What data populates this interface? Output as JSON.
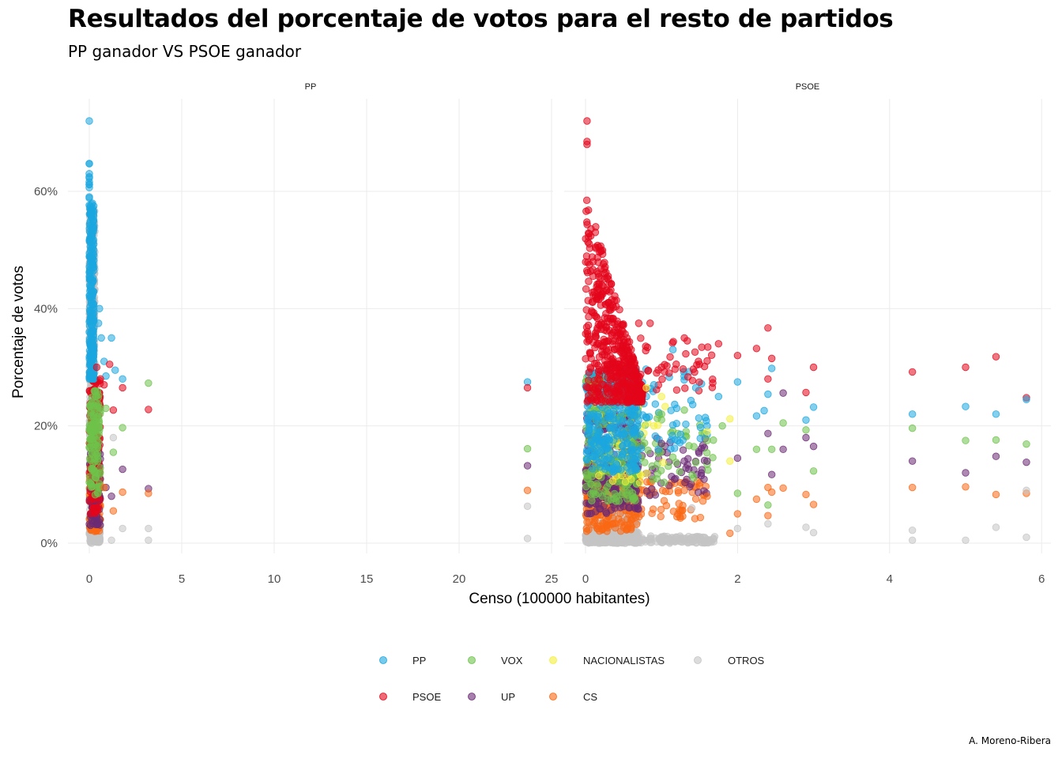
{
  "title": "Resultados del porcentaje de votos para el resto de partidos",
  "subtitle": "PP ganador VS PSOE ganador",
  "caption": "A. Moreno-Ribera",
  "chart_data": {
    "type": "scatter",
    "xlabel": "Censo (100000 habitantes)",
    "ylabel": "Porcentaje de votos",
    "ylim": [
      0,
      0.75
    ],
    "yticks": [
      0,
      0.2,
      0.4,
      0.6
    ],
    "ytick_labels": [
      "0%",
      "20%",
      "40%",
      "60%"
    ],
    "grid": true,
    "legend_position": "bottom",
    "legend": [
      {
        "name": "PP",
        "color": "#1BA7E0"
      },
      {
        "name": "VOX",
        "color": "#6EC34B"
      },
      {
        "name": "NACIONALISTAS",
        "color": "#F4F03A"
      },
      {
        "name": "OTROS",
        "color": "#C4C4C4"
      },
      {
        "name": "PSOE",
        "color": "#E3061B"
      },
      {
        "name": "UP",
        "color": "#6B2A74"
      },
      {
        "name": "CS",
        "color": "#FA6814"
      }
    ],
    "panels": [
      {
        "label": "PP",
        "xlim": [
          -1.2,
          25
        ],
        "xticks": [
          0,
          5,
          10,
          15,
          20,
          25
        ],
        "points": {
          "PP": [
            [
              0.55,
              0.4
            ],
            [
              0.65,
              0.35
            ],
            [
              0.8,
              0.31
            ],
            [
              1.2,
              0.35
            ],
            [
              1.4,
              0.295
            ],
            [
              1.8,
              0.28
            ],
            [
              0.5,
              0.375
            ],
            [
              0.3,
              0.3
            ],
            [
              0.9,
              0.285
            ],
            [
              23.7,
              0.275
            ]
          ],
          "PSOE": [
            [
              0.6,
              0.28
            ],
            [
              0.8,
              0.27
            ],
            [
              1.1,
              0.305
            ],
            [
              1.8,
              0.265
            ],
            [
              3.2,
              0.228
            ],
            [
              1.3,
              0.227
            ],
            [
              0.4,
              0.3
            ],
            [
              23.7,
              0.265
            ]
          ],
          "VOX": [
            [
              1.3,
              0.155
            ],
            [
              1.8,
              0.197
            ],
            [
              3.2,
              0.273
            ],
            [
              0.6,
              0.225
            ],
            [
              0.9,
              0.23
            ],
            [
              23.7,
              0.161
            ]
          ],
          "UP": [
            [
              1.2,
              0.08
            ],
            [
              1.8,
              0.126
            ],
            [
              3.2,
              0.093
            ],
            [
              0.9,
              0.095
            ],
            [
              23.7,
              0.132
            ]
          ],
          "CS": [
            [
              1.3,
              0.055
            ],
            [
              1.8,
              0.087
            ],
            [
              3.2,
              0.085
            ],
            [
              0.8,
              0.095
            ],
            [
              23.7,
              0.09
            ]
          ],
          "OTROS": [
            [
              1.3,
              0.18
            ],
            [
              1.8,
              0.025
            ],
            [
              3.2,
              0.025
            ],
            [
              3.2,
              0.005
            ],
            [
              1.2,
              0.005
            ],
            [
              23.7,
              0.063
            ],
            [
              23.7,
              0.008
            ]
          ]
        }
      },
      {
        "label": "PSOE",
        "xlim": [
          -0.08,
          6.15
        ],
        "xticks": [
          0,
          2,
          4,
          6
        ],
        "points": {
          "PSOE": [
            [
              0.02,
              0.72
            ],
            [
              0.02,
              0.685
            ],
            [
              0.02,
              0.68
            ],
            [
              0.1,
              0.48
            ],
            [
              0.25,
              0.46
            ],
            [
              0.3,
              0.45
            ],
            [
              0.3,
              0.41
            ],
            [
              0.7,
              0.375
            ],
            [
              0.85,
              0.375
            ],
            [
              1.0,
              0.3
            ],
            [
              1.3,
              0.35
            ],
            [
              1.5,
              0.305
            ],
            [
              1.75,
              0.34
            ],
            [
              2.0,
              0.32
            ],
            [
              2.25,
              0.332
            ],
            [
              2.4,
              0.367
            ],
            [
              2.45,
              0.315
            ],
            [
              2.4,
              0.28
            ],
            [
              2.9,
              0.257
            ],
            [
              3.0,
              0.3
            ],
            [
              4.3,
              0.292
            ],
            [
              5.0,
              0.3
            ],
            [
              5.4,
              0.318
            ],
            [
              5.8,
              0.248
            ],
            [
              1.1,
              0.29
            ],
            [
              0.6,
              0.33
            ]
          ],
          "PP": [
            [
              1.15,
              0.33
            ],
            [
              1.2,
              0.23
            ],
            [
              1.45,
              0.265
            ],
            [
              1.6,
              0.2
            ],
            [
              1.75,
              0.25
            ],
            [
              2.0,
              0.275
            ],
            [
              2.25,
              0.217
            ],
            [
              2.35,
              0.226
            ],
            [
              2.4,
              0.254
            ],
            [
              2.45,
              0.298
            ],
            [
              2.9,
              0.21
            ],
            [
              3.0,
              0.232
            ],
            [
              4.3,
              0.22
            ],
            [
              5.0,
              0.233
            ],
            [
              5.4,
              0.22
            ],
            [
              5.8,
              0.245
            ],
            [
              0.9,
              0.27
            ],
            [
              1.6,
              0.185
            ]
          ],
          "VOX": [
            [
              1.3,
              0.227
            ],
            [
              1.6,
              0.175
            ],
            [
              2.0,
              0.085
            ],
            [
              2.25,
              0.16
            ],
            [
              2.4,
              0.065
            ],
            [
              2.45,
              0.16
            ],
            [
              2.6,
              0.205
            ],
            [
              2.9,
              0.193
            ],
            [
              3.0,
              0.123
            ],
            [
              4.3,
              0.196
            ],
            [
              5.0,
              0.175
            ],
            [
              5.4,
              0.176
            ],
            [
              5.8,
              0.169
            ],
            [
              1.0,
              0.22
            ],
            [
              1.8,
              0.2
            ]
          ],
          "UP": [
            [
              1.3,
              0.14
            ],
            [
              1.6,
              0.14
            ],
            [
              2.0,
              0.145
            ],
            [
              2.4,
              0.187
            ],
            [
              2.45,
              0.117
            ],
            [
              2.6,
              0.16
            ],
            [
              2.9,
              0.18
            ],
            [
              3.0,
              0.165
            ],
            [
              4.3,
              0.14
            ],
            [
              5.0,
              0.12
            ],
            [
              5.4,
              0.148
            ],
            [
              5.8,
              0.138
            ],
            [
              2.6,
              0.256
            ],
            [
              1.0,
              0.17
            ]
          ],
          "CS": [
            [
              1.3,
              0.09
            ],
            [
              1.6,
              0.08
            ],
            [
              2.0,
              0.05
            ],
            [
              2.25,
              0.075
            ],
            [
              2.4,
              0.095
            ],
            [
              2.45,
              0.087
            ],
            [
              2.6,
              0.094
            ],
            [
              2.9,
              0.083
            ],
            [
              3.0,
              0.066
            ],
            [
              4.3,
              0.095
            ],
            [
              5.0,
              0.096
            ],
            [
              5.4,
              0.083
            ],
            [
              5.8,
              0.085
            ],
            [
              2.4,
              0.047
            ],
            [
              1.9,
              0.017
            ]
          ],
          "NACIONALISTAS": [
            [
              0.8,
              0.265
            ],
            [
              1.0,
              0.25
            ],
            [
              1.9,
              0.212
            ],
            [
              1.9,
              0.14
            ],
            [
              1.6,
              0.19
            ],
            [
              0.9,
              0.2
            ]
          ],
          "OTROS": [
            [
              1.3,
              0.005
            ],
            [
              2.0,
              0.025
            ],
            [
              2.4,
              0.033
            ],
            [
              3.0,
              0.018
            ],
            [
              4.3,
              0.022
            ],
            [
              5.4,
              0.027
            ],
            [
              5.8,
              0.01
            ],
            [
              5.8,
              0.09
            ],
            [
              2.9,
              0.027
            ],
            [
              1.4,
              0.06
            ],
            [
              4.3,
              0.005
            ],
            [
              5.0,
              0.005
            ]
          ]
        }
      }
    ]
  }
}
